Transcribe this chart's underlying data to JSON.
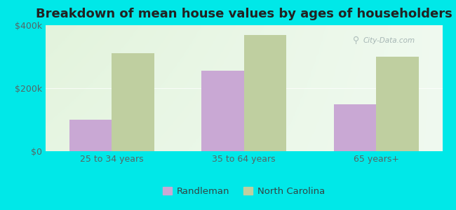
{
  "title": "Breakdown of mean house values by ages of householders",
  "categories": [
    "25 to 34 years",
    "35 to 64 years",
    "65 years+"
  ],
  "randleman_values": [
    100000,
    255000,
    150000
  ],
  "nc_values": [
    312000,
    368000,
    300000
  ],
  "randleman_color": "#c9a8d4",
  "nc_color": "#bfcfa0",
  "background_color": "#00e8e8",
  "ylim": [
    0,
    400000
  ],
  "yticks": [
    0,
    200000,
    400000
  ],
  "ytick_labels": [
    "$0",
    "$200k",
    "$400k"
  ],
  "legend_randleman": "Randleman",
  "legend_nc": "North Carolina",
  "bar_width": 0.32,
  "title_fontsize": 13,
  "tick_fontsize": 9,
  "legend_fontsize": 9.5,
  "watermark_text": "City-Data.com"
}
